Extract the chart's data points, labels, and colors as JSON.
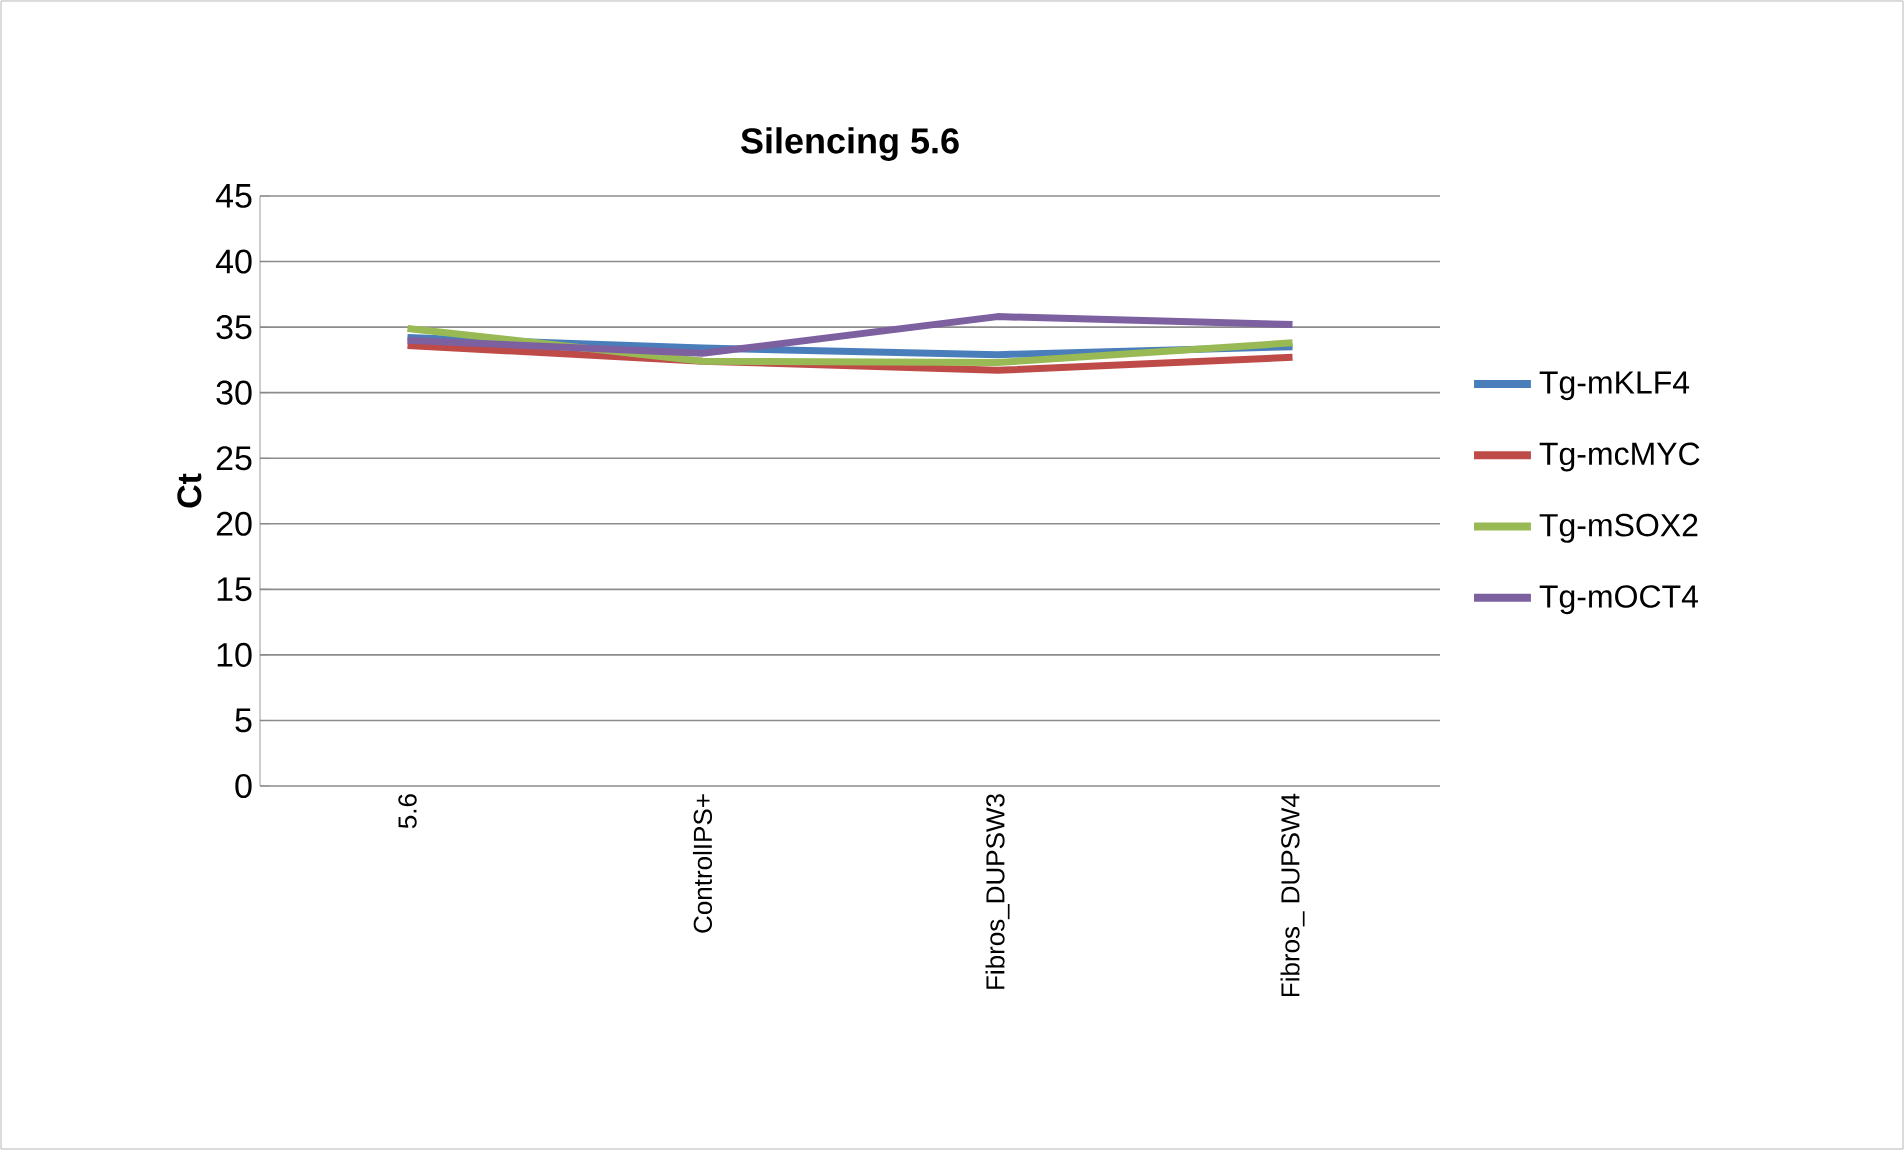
{
  "chart_data": {
    "type": "line",
    "title": "Silencing 5.6",
    "ylabel": "Ct",
    "categories": [
      "5.6",
      "ControlIPS+",
      "Fibros_DUPSW3",
      "Fibros_ DUPSW4"
    ],
    "series": [
      {
        "name": "Tg-mKLF4",
        "color": "#4a7ebb",
        "values": [
          34.2,
          33.4,
          32.9,
          33.5
        ]
      },
      {
        "name": "Tg-mcMYC",
        "color": "#be4b48",
        "values": [
          33.6,
          32.4,
          31.7,
          32.7
        ]
      },
      {
        "name": "Tg-mSOX2",
        "color": "#98b954",
        "values": [
          34.9,
          32.4,
          32.3,
          33.8
        ]
      },
      {
        "name": "Tg-mOCT4",
        "color": "#7d60a0",
        "values": [
          34.0,
          33.0,
          35.8,
          35.2
        ]
      }
    ],
    "ylim": [
      0,
      45
    ],
    "yticks": [
      0,
      5,
      10,
      15,
      20,
      25,
      30,
      35,
      40,
      45
    ],
    "grid": "y",
    "legend": "right",
    "marker": "none",
    "line_style": "solid"
  }
}
